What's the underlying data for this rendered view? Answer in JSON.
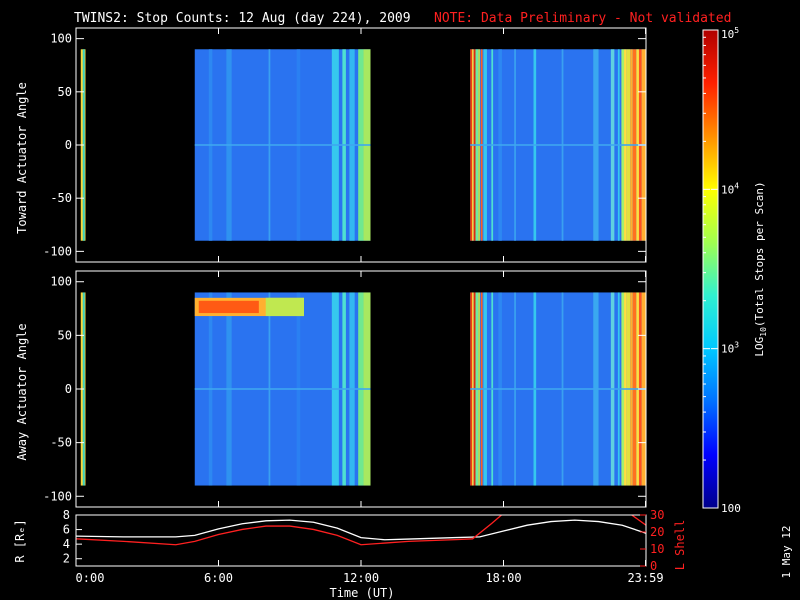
{
  "header": {
    "title": "TWINS2: Stop Counts: 12 Aug (day 224), 2009",
    "note": "NOTE: Data Preliminary - Not validated"
  },
  "footer": {
    "stamp": "1 May 12"
  },
  "chart_data": [
    {
      "type": "heatmap",
      "name": "toward",
      "ylabel": "Toward Actuator Angle",
      "ylim": [
        -110,
        110
      ],
      "yticks": [
        100,
        50,
        0,
        -50,
        -100
      ],
      "ytick_labels": [
        "100",
        "50",
        "0",
        "-50",
        "-100"
      ],
      "xlim_hours": [
        0,
        24
      ],
      "grid": false,
      "angle_range": [
        -90,
        90
      ],
      "data_segments_hours": [
        [
          0.2,
          0.4
        ],
        [
          5.0,
          12.4
        ],
        [
          16.6,
          24.0
        ]
      ],
      "colors": {
        "background": "#2a73f0",
        "segment1": "#f7d53a",
        "banding": "#36c8ee"
      }
    },
    {
      "type": "heatmap",
      "name": "away",
      "ylabel": "Away Actuator Angle",
      "ylim": [
        -110,
        110
      ],
      "yticks": [
        100,
        50,
        0,
        -50,
        -100
      ],
      "ytick_labels": [
        "100",
        "50",
        "0",
        "-50",
        "-100"
      ],
      "xlim_hours": [
        0,
        24
      ],
      "grid": false,
      "angle_range": [
        -90,
        90
      ],
      "data_segments_hours": [
        [
          0.2,
          0.4
        ],
        [
          5.0,
          12.4
        ],
        [
          16.6,
          24.0
        ]
      ],
      "hot_band": {
        "time_hours": [
          5.0,
          9.6
        ],
        "angle_range": [
          68,
          85
        ],
        "color": "#ff5a14"
      },
      "colors": {
        "background": "#2a73f0",
        "segment1": "#f7d53a",
        "banding": "#36c8ee"
      }
    },
    {
      "type": "line",
      "name": "orbit",
      "ylabel": "R [Rₑ]",
      "ylabel2": "L Shell",
      "xlabel": "Time (UT)",
      "ylim": [
        1,
        8
      ],
      "yticks": [
        2,
        4,
        6,
        8
      ],
      "ytick_labels": [
        "2",
        "4",
        "6",
        "8"
      ],
      "ylim2": [
        0,
        30
      ],
      "yticks2": [
        0,
        10,
        20,
        30
      ],
      "ytick2_labels": [
        "0",
        "10",
        "20",
        "30"
      ],
      "xlim_hours": [
        0,
        24
      ],
      "xticks_hours": [
        0,
        6,
        12,
        18,
        23.98
      ],
      "xtick_labels": [
        "0:00",
        "6:00",
        "12:00",
        "18:00",
        "23:59"
      ],
      "series": [
        {
          "color": "#ffffff",
          "x": [
            0,
            2,
            4.2,
            5,
            6,
            7,
            8,
            9,
            10,
            11,
            12,
            13,
            14,
            15,
            16,
            17,
            18,
            19,
            20,
            21,
            22,
            23,
            24
          ],
          "y": [
            5.1,
            5.0,
            5.0,
            5.2,
            6.1,
            6.8,
            7.2,
            7.3,
            7.0,
            6.2,
            4.9,
            4.6,
            4.7,
            4.8,
            4.9,
            5.0,
            5.8,
            6.6,
            7.1,
            7.3,
            7.1,
            6.6,
            5.5
          ]
        },
        {
          "color": "#ff2020",
          "axis": "L",
          "x": [
            0,
            2,
            4.2,
            5,
            6,
            7,
            8,
            9,
            10,
            11,
            12,
            13,
            14,
            15,
            16,
            16.7,
            17.5,
            18.0
          ],
          "y": [
            16.0,
            14.5,
            12.5,
            14.5,
            18.5,
            21.5,
            23.5,
            23.5,
            21.5,
            18.0,
            12.5,
            13.5,
            14.5,
            15.0,
            15.5,
            16.0,
            25.0,
            31.0
          ]
        },
        {
          "color": "#ff2020",
          "axis": "L",
          "x": [
            23.3,
            23.6,
            24
          ],
          "y": [
            31.0,
            28.0,
            24.0
          ]
        }
      ]
    }
  ],
  "colorbar": {
    "label_main": "LOG",
    "label_sub": "10",
    "label_rest": "(Total Stops per Scan)",
    "ticks": [
      {
        "value": 100,
        "base": "100",
        "exp": ""
      },
      {
        "value": 1000,
        "base": "10",
        "exp": "3"
      },
      {
        "value": 10000,
        "base": "10",
        "exp": "4"
      },
      {
        "value": 100000,
        "base": "10",
        "exp": "5"
      }
    ],
    "range": [
      100,
      100000
    ],
    "colors": [
      "#00008b",
      "#0000ff",
      "#0070ff",
      "#00c8ff",
      "#30f0d0",
      "#a0ff50",
      "#ffff00",
      "#ff9000",
      "#ff2000",
      "#b00000"
    ]
  }
}
